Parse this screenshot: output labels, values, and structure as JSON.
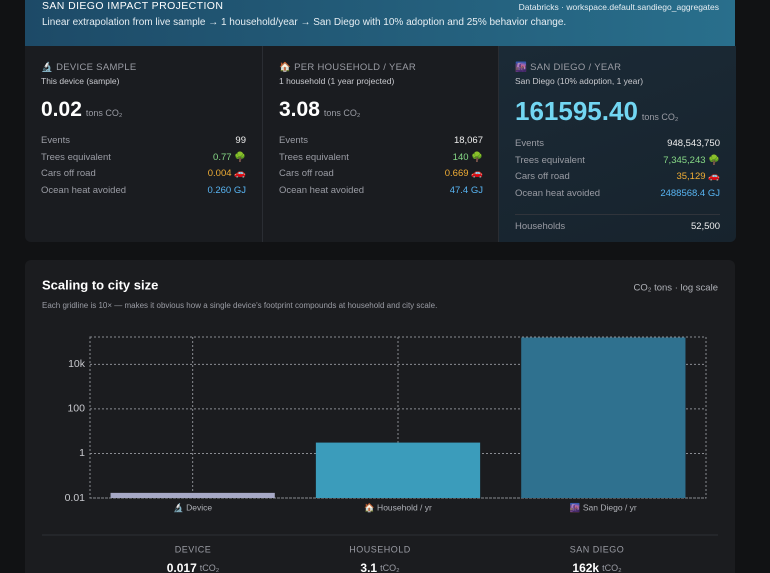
{
  "header": {
    "title": "SAN DIEGO IMPACT PROJECTION",
    "source": "Databricks · workspace.default.sandiego_aggregates",
    "subtitle": "Linear extrapolation from live sample → 1 household/year → San Diego with 10% adoption and 25% behavior change."
  },
  "cards": [
    {
      "label": "🔬 DEVICE SAMPLE",
      "caption": "This device (sample)",
      "value": "0.02",
      "unit": "tons CO₂",
      "rows": [
        {
          "label": "Events",
          "value": "99"
        },
        {
          "label": "Trees equivalent",
          "value": "0.77"
        },
        {
          "label": "Cars off road",
          "value": "0.004"
        },
        {
          "label": "Ocean heat avoided",
          "value": "0.260 GJ"
        }
      ]
    },
    {
      "label": "🏠 PER HOUSEHOLD / YEAR",
      "caption": "1 household (1 year projected)",
      "value": "3.08",
      "unit": "tons CO₂",
      "rows": [
        {
          "label": "Events",
          "value": "18,067"
        },
        {
          "label": "Trees equivalent",
          "value": "140"
        },
        {
          "label": "Cars off road",
          "value": "0.669"
        },
        {
          "label": "Ocean heat avoided",
          "value": "47.4 GJ"
        }
      ]
    },
    {
      "label": "🌆 SAN DIEGO / YEAR",
      "caption": "San Diego (10% adoption, 1 year)",
      "value": "161595.40",
      "unit": "tons CO₂",
      "rows": [
        {
          "label": "Events",
          "value": "948,543,750"
        },
        {
          "label": "Trees equivalent",
          "value": "7,345,243"
        },
        {
          "label": "Cars off road",
          "value": "35,129"
        },
        {
          "label": "Ocean heat avoided",
          "value": "2488568.4 GJ"
        },
        {
          "label": "Households",
          "value": "52,500"
        }
      ]
    }
  ],
  "chart_data": {
    "type": "bar",
    "title": "Scaling to city size",
    "note": "CO₂ tons · log scale",
    "subtitle": "Each gridline is 10× — makes it obvious how a single device's footprint compounds at household and city scale.",
    "categories": [
      "🔬 Device",
      "🏠 Household / yr",
      "🌆 San Diego / yr"
    ],
    "values": [
      0.017,
      3.08,
      161595.4
    ],
    "colors": [
      "#a7a9c6",
      "#3b9cbb",
      "#2f718f"
    ],
    "ylim": [
      0.01,
      170000
    ],
    "yticks": [
      0.01,
      1,
      100,
      {
        "value": 10000,
        "label": "10k"
      }
    ],
    "log_scale": true,
    "grid": true
  },
  "summary": [
    {
      "label": "DEVICE",
      "value": "0.017",
      "unit": "tCO₂"
    },
    {
      "label": "HOUSEHOLD",
      "value": "3.1",
      "unit": "tCO₂"
    },
    {
      "label": "SAN DIEGO",
      "value": "162k",
      "unit": "tCO₂"
    }
  ]
}
